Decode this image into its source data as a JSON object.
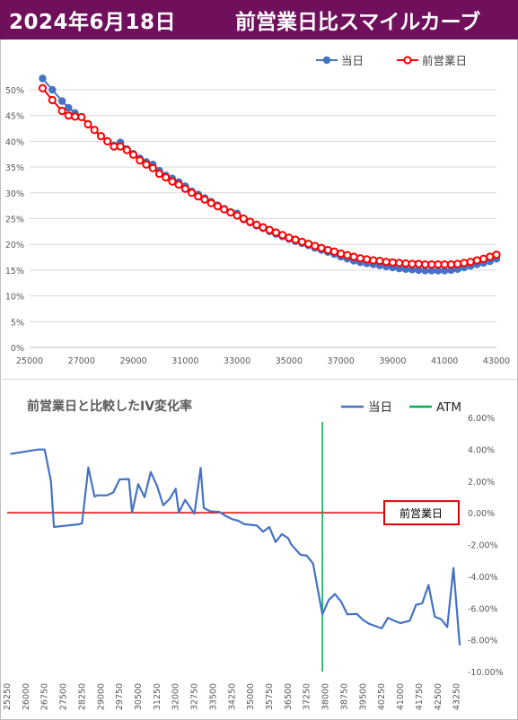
{
  "header": {
    "date": "2024年6月18日",
    "title": "前営業日比スマイルカーブ"
  },
  "chart_data": [
    {
      "type": "line",
      "title": "",
      "legend": "top-right",
      "xlim": [
        25000,
        43000
      ],
      "ylim": [
        0,
        0.5
      ],
      "x_ticks": [
        "25000",
        "27000",
        "29000",
        "31000",
        "33000",
        "35000",
        "37000",
        "39000",
        "41000",
        "43000"
      ],
      "y_ticks": [
        "0%",
        "5%",
        "10%",
        "15%",
        "20%",
        "25%",
        "30%",
        "35%",
        "40%",
        "45%",
        "50%"
      ],
      "series": [
        {
          "name": "当日",
          "color": "#4472c4",
          "x": [
            25500,
            25875,
            26250,
            26500,
            26750,
            27000,
            27250,
            27500,
            27750,
            28000,
            28250,
            28500,
            28750,
            29000,
            29250,
            29500,
            29750,
            30000,
            30250,
            30500,
            30750,
            31000,
            31250,
            31500,
            31750,
            32000,
            32250,
            32500,
            32750,
            33000,
            33250,
            33500,
            33750,
            34000,
            34250,
            34500,
            34750,
            35000,
            35250,
            35500,
            35750,
            36000,
            36250,
            36500,
            36750,
            37000,
            37250,
            37500,
            37750,
            38000,
            38250,
            38500,
            38750,
            39000,
            39250,
            39500,
            39750,
            40000,
            40250,
            40500,
            40750,
            41000,
            41250,
            41500,
            41750,
            42000,
            42250,
            42500,
            42750,
            43000
          ],
          "y": [
            0.522,
            0.5,
            0.478,
            0.465,
            0.455,
            0.447,
            0.434,
            0.422,
            0.41,
            0.4,
            0.392,
            0.398,
            0.385,
            0.376,
            0.367,
            0.36,
            0.355,
            0.343,
            0.334,
            0.328,
            0.321,
            0.313,
            0.303,
            0.297,
            0.29,
            0.283,
            0.276,
            0.269,
            0.262,
            0.26,
            0.248,
            0.242,
            0.236,
            0.231,
            0.225,
            0.22,
            0.215,
            0.21,
            0.206,
            0.202,
            0.198,
            0.193,
            0.189,
            0.185,
            0.181,
            0.176,
            0.172,
            0.168,
            0.165,
            0.163,
            0.161,
            0.159,
            0.157,
            0.155,
            0.153,
            0.152,
            0.151,
            0.15,
            0.149,
            0.149,
            0.149,
            0.149,
            0.15,
            0.152,
            0.155,
            0.158,
            0.161,
            0.164,
            0.167,
            0.172
          ]
        },
        {
          "name": "前営業日",
          "color": "#ff0000",
          "x": [
            25500,
            25875,
            26250,
            26500,
            26750,
            27000,
            27250,
            27500,
            27750,
            28000,
            28250,
            28500,
            28750,
            29000,
            29250,
            29500,
            29750,
            30000,
            30250,
            30500,
            30750,
            31000,
            31250,
            31500,
            31750,
            32000,
            32250,
            32500,
            32750,
            33000,
            33250,
            33500,
            33750,
            34000,
            34250,
            34500,
            34750,
            35000,
            35250,
            35500,
            35750,
            36000,
            36250,
            36500,
            36750,
            37000,
            37250,
            37500,
            37750,
            38000,
            38250,
            38500,
            38750,
            39000,
            39250,
            39500,
            39750,
            40000,
            40250,
            40500,
            40750,
            41000,
            41250,
            41500,
            41750,
            42000,
            42250,
            42500,
            42750,
            43000
          ],
          "y": [
            0.503,
            0.48,
            0.459,
            0.45,
            0.448,
            0.447,
            0.433,
            0.422,
            0.41,
            0.4,
            0.39,
            0.39,
            0.383,
            0.374,
            0.363,
            0.355,
            0.348,
            0.337,
            0.33,
            0.322,
            0.316,
            0.308,
            0.3,
            0.293,
            0.287,
            0.28,
            0.274,
            0.268,
            0.262,
            0.256,
            0.25,
            0.244,
            0.238,
            0.233,
            0.228,
            0.223,
            0.218,
            0.213,
            0.209,
            0.205,
            0.201,
            0.197,
            0.193,
            0.189,
            0.186,
            0.182,
            0.179,
            0.176,
            0.173,
            0.171,
            0.169,
            0.168,
            0.166,
            0.165,
            0.164,
            0.163,
            0.162,
            0.162,
            0.161,
            0.161,
            0.161,
            0.161,
            0.161,
            0.162,
            0.164,
            0.166,
            0.169,
            0.172,
            0.176,
            0.18
          ]
        }
      ]
    },
    {
      "type": "line",
      "title": "前営業日と比較したIV変化率",
      "legend": "top-right",
      "ylim": [
        -0.1,
        0.06
      ],
      "y_ticks": [
        "6.00%",
        "4.00%",
        "2.00%",
        "0.00%",
        "-2.00%",
        "-4.00%",
        "-6.00%",
        "-8.00%",
        "-10.00%"
      ],
      "x_ticks": [
        "25250",
        "26000",
        "26750",
        "27500",
        "28250",
        "29000",
        "29750",
        "30500",
        "31250",
        "32000",
        "32750",
        "33500",
        "34250",
        "35000",
        "35750",
        "36500",
        "37250",
        "38000",
        "38750",
        "39500",
        "40250",
        "41000",
        "41750",
        "42500",
        "43250"
      ],
      "x": [
        25375,
        26500,
        26750,
        27000,
        27125,
        27375,
        28125,
        28250,
        28500,
        28750,
        28875,
        29250,
        29500,
        29750,
        30125,
        30250,
        30500,
        30750,
        31000,
        31250,
        31500,
        31750,
        32000,
        32125,
        32375,
        32750,
        33000,
        33125,
        33375,
        33500,
        33750,
        34000,
        34250,
        34375,
        34500,
        34750,
        35250,
        35500,
        35750,
        36000,
        36250,
        36500,
        36625,
        37000,
        37250,
        37500,
        37875,
        38125,
        38375,
        38625,
        38875,
        39250,
        39500,
        39750,
        40250,
        40500,
        40750,
        41000,
        41375,
        41625,
        41875,
        42125,
        42375,
        42625,
        42875,
        43125,
        43375
      ],
      "series": [
        {
          "name": "当日",
          "color": "#4472c4",
          "y": [
            0.037,
            0.0398,
            0.0398,
            0.02,
            -0.009,
            -0.0085,
            -0.0073,
            -0.0066,
            0.0285,
            0.0102,
            0.011,
            0.0109,
            0.0128,
            0.021,
            0.0212,
            0.0001,
            0.018,
            0.0098,
            0.0256,
            0.017,
            0.0047,
            0.0086,
            0.0151,
            0.0001,
            0.0081,
            -0.0006,
            0.0282,
            0.003,
            0.001,
            0.0008,
            0.0005,
            -0.002,
            -0.004,
            -0.0045,
            -0.005,
            -0.0072,
            -0.008,
            -0.012,
            -0.009,
            -0.0185,
            -0.0135,
            -0.016,
            -0.02,
            -0.0265,
            -0.027,
            -0.032,
            -0.064,
            -0.055,
            -0.0512,
            -0.056,
            -0.064,
            -0.0637,
            -0.0675,
            -0.07,
            -0.0728,
            -0.0662,
            -0.068,
            -0.0695,
            -0.068,
            -0.058,
            -0.057,
            -0.0455,
            -0.0655,
            -0.067,
            -0.072,
            -0.0348,
            -0.0835
          ]
        },
        {
          "name": "ATM",
          "color": "#00b050",
          "x_value": 37875
        }
      ],
      "reference_label": "前営業日",
      "reference_value": 0.0
    }
  ]
}
